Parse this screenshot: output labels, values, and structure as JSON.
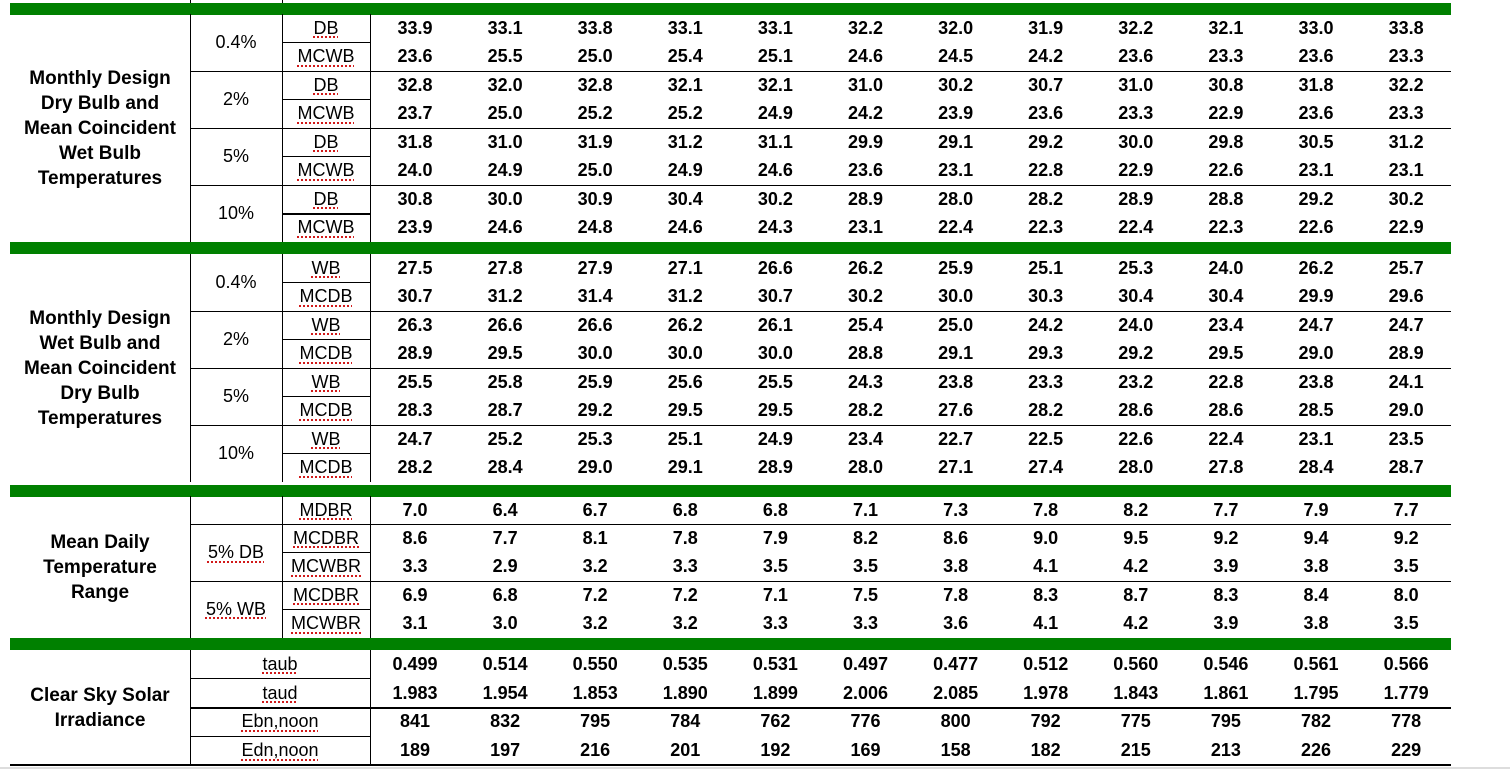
{
  "colors": {
    "section_divider": "#008000"
  },
  "sections": [
    {
      "label": "Monthly Design\nDry Bulb and\nMean Coincident\nWet Bulb\nTemperatures",
      "groups": [
        {
          "pct": "0.4%",
          "rows": [
            {
              "param": "DB",
              "values": [
                "33.9",
                "33.1",
                "33.8",
                "33.1",
                "33.1",
                "32.2",
                "32.0",
                "31.9",
                "32.2",
                "32.1",
                "33.0",
                "33.8"
              ]
            },
            {
              "param": "MCWB",
              "values": [
                "23.6",
                "25.5",
                "25.0",
                "25.4",
                "25.1",
                "24.6",
                "24.5",
                "24.2",
                "23.6",
                "23.3",
                "23.6",
                "23.3"
              ]
            }
          ]
        },
        {
          "pct": "2%",
          "rows": [
            {
              "param": "DB",
              "values": [
                "32.8",
                "32.0",
                "32.8",
                "32.1",
                "32.1",
                "31.0",
                "30.2",
                "30.7",
                "31.0",
                "30.8",
                "31.8",
                "32.2"
              ]
            },
            {
              "param": "MCWB",
              "values": [
                "23.7",
                "25.0",
                "25.2",
                "25.2",
                "24.9",
                "24.2",
                "23.9",
                "23.6",
                "23.3",
                "22.9",
                "23.6",
                "23.3"
              ]
            }
          ]
        },
        {
          "pct": "5%",
          "rows": [
            {
              "param": "DB",
              "values": [
                "31.8",
                "31.0",
                "31.9",
                "31.2",
                "31.1",
                "29.9",
                "29.1",
                "29.2",
                "30.0",
                "29.8",
                "30.5",
                "31.2"
              ]
            },
            {
              "param": "MCWB",
              "values": [
                "24.0",
                "24.9",
                "25.0",
                "24.9",
                "24.6",
                "23.6",
                "23.1",
                "22.8",
                "22.9",
                "22.6",
                "23.1",
                "23.1"
              ]
            }
          ]
        },
        {
          "pct": "10%",
          "rows": [
            {
              "param": "DB",
              "values": [
                "30.8",
                "30.0",
                "30.9",
                "30.4",
                "30.2",
                "28.9",
                "28.0",
                "28.2",
                "28.9",
                "28.8",
                "29.2",
                "30.2"
              ]
            },
            {
              "param": "MCWB",
              "values": [
                "23.9",
                "24.6",
                "24.8",
                "24.6",
                "24.3",
                "23.1",
                "22.4",
                "22.3",
                "22.4",
                "22.3",
                "22.6",
                "22.9"
              ]
            }
          ]
        }
      ]
    },
    {
      "label": "Monthly Design\nWet Bulb and\nMean Coincident\nDry Bulb\nTemperatures",
      "groups": [
        {
          "pct": "0.4%",
          "rows": [
            {
              "param": "WB",
              "values": [
                "27.5",
                "27.8",
                "27.9",
                "27.1",
                "26.6",
                "26.2",
                "25.9",
                "25.1",
                "25.3",
                "24.0",
                "26.2",
                "25.7"
              ]
            },
            {
              "param": "MCDB",
              "values": [
                "30.7",
                "31.2",
                "31.4",
                "31.2",
                "30.7",
                "30.2",
                "30.0",
                "30.3",
                "30.4",
                "30.4",
                "29.9",
                "29.6"
              ]
            }
          ]
        },
        {
          "pct": "2%",
          "rows": [
            {
              "param": "WB",
              "values": [
                "26.3",
                "26.6",
                "26.6",
                "26.2",
                "26.1",
                "25.4",
                "25.0",
                "24.2",
                "24.0",
                "23.4",
                "24.7",
                "24.7"
              ]
            },
            {
              "param": "MCDB",
              "values": [
                "28.9",
                "29.5",
                "30.0",
                "30.0",
                "30.0",
                "28.8",
                "29.1",
                "29.3",
                "29.2",
                "29.5",
                "29.0",
                "28.9"
              ]
            }
          ]
        },
        {
          "pct": "5%",
          "rows": [
            {
              "param": "WB",
              "values": [
                "25.5",
                "25.8",
                "25.9",
                "25.6",
                "25.5",
                "24.3",
                "23.8",
                "23.3",
                "23.2",
                "22.8",
                "23.8",
                "24.1"
              ]
            },
            {
              "param": "MCDB",
              "values": [
                "28.3",
                "28.7",
                "29.2",
                "29.5",
                "29.5",
                "28.2",
                "27.6",
                "28.2",
                "28.6",
                "28.6",
                "28.5",
                "29.0"
              ]
            }
          ]
        },
        {
          "pct": "10%",
          "rows": [
            {
              "param": "WB",
              "values": [
                "24.7",
                "25.2",
                "25.3",
                "25.1",
                "24.9",
                "23.4",
                "22.7",
                "22.5",
                "22.6",
                "22.4",
                "23.1",
                "23.5"
              ]
            },
            {
              "param": "MCDB",
              "values": [
                "28.2",
                "28.4",
                "29.0",
                "29.1",
                "28.9",
                "28.0",
                "27.1",
                "27.4",
                "28.0",
                "27.8",
                "28.4",
                "28.7"
              ]
            }
          ]
        }
      ]
    },
    {
      "label": "Mean Daily\nTemperature\nRange",
      "groups": [
        {
          "pct": "",
          "rows": [
            {
              "param": "MDBR",
              "values": [
                "7.0",
                "6.4",
                "6.7",
                "6.8",
                "6.8",
                "7.1",
                "7.3",
                "7.8",
                "8.2",
                "7.7",
                "7.9",
                "7.7"
              ]
            }
          ]
        },
        {
          "pct": "5% DB",
          "rows": [
            {
              "param": "MCDBR",
              "values": [
                "8.6",
                "7.7",
                "8.1",
                "7.8",
                "7.9",
                "8.2",
                "8.6",
                "9.0",
                "9.5",
                "9.2",
                "9.4",
                "9.2"
              ]
            },
            {
              "param": "MCWBR",
              "values": [
                "3.3",
                "2.9",
                "3.2",
                "3.3",
                "3.5",
                "3.5",
                "3.8",
                "4.1",
                "4.2",
                "3.9",
                "3.8",
                "3.5"
              ]
            }
          ]
        },
        {
          "pct": "5% WB",
          "rows": [
            {
              "param": "MCDBR",
              "values": [
                "6.9",
                "6.8",
                "7.2",
                "7.2",
                "7.1",
                "7.5",
                "7.8",
                "8.3",
                "8.7",
                "8.3",
                "8.4",
                "8.0"
              ]
            },
            {
              "param": "MCWBR",
              "values": [
                "3.1",
                "3.0",
                "3.2",
                "3.2",
                "3.3",
                "3.3",
                "3.6",
                "4.1",
                "4.2",
                "3.9",
                "3.8",
                "3.5"
              ]
            }
          ]
        }
      ]
    },
    {
      "label": "Clear Sky Solar\nIrradiance",
      "merged": true,
      "groups": [
        {
          "rows": [
            {
              "param": "taub",
              "values": [
                "0.499",
                "0.514",
                "0.550",
                "0.535",
                "0.531",
                "0.497",
                "0.477",
                "0.512",
                "0.560",
                "0.546",
                "0.561",
                "0.566"
              ]
            },
            {
              "param": "taud",
              "values": [
                "1.983",
                "1.954",
                "1.853",
                "1.890",
                "1.899",
                "2.006",
                "2.085",
                "1.978",
                "1.843",
                "1.861",
                "1.795",
                "1.779"
              ]
            }
          ]
        },
        {
          "rows": [
            {
              "param": "Ebn,noon",
              "values": [
                "841",
                "832",
                "795",
                "784",
                "762",
                "776",
                "800",
                "792",
                "775",
                "795",
                "782",
                "778"
              ]
            },
            {
              "param": "Edn,noon",
              "values": [
                "189",
                "197",
                "216",
                "201",
                "192",
                "169",
                "158",
                "182",
                "215",
                "213",
                "226",
                "229"
              ]
            }
          ]
        }
      ]
    }
  ]
}
